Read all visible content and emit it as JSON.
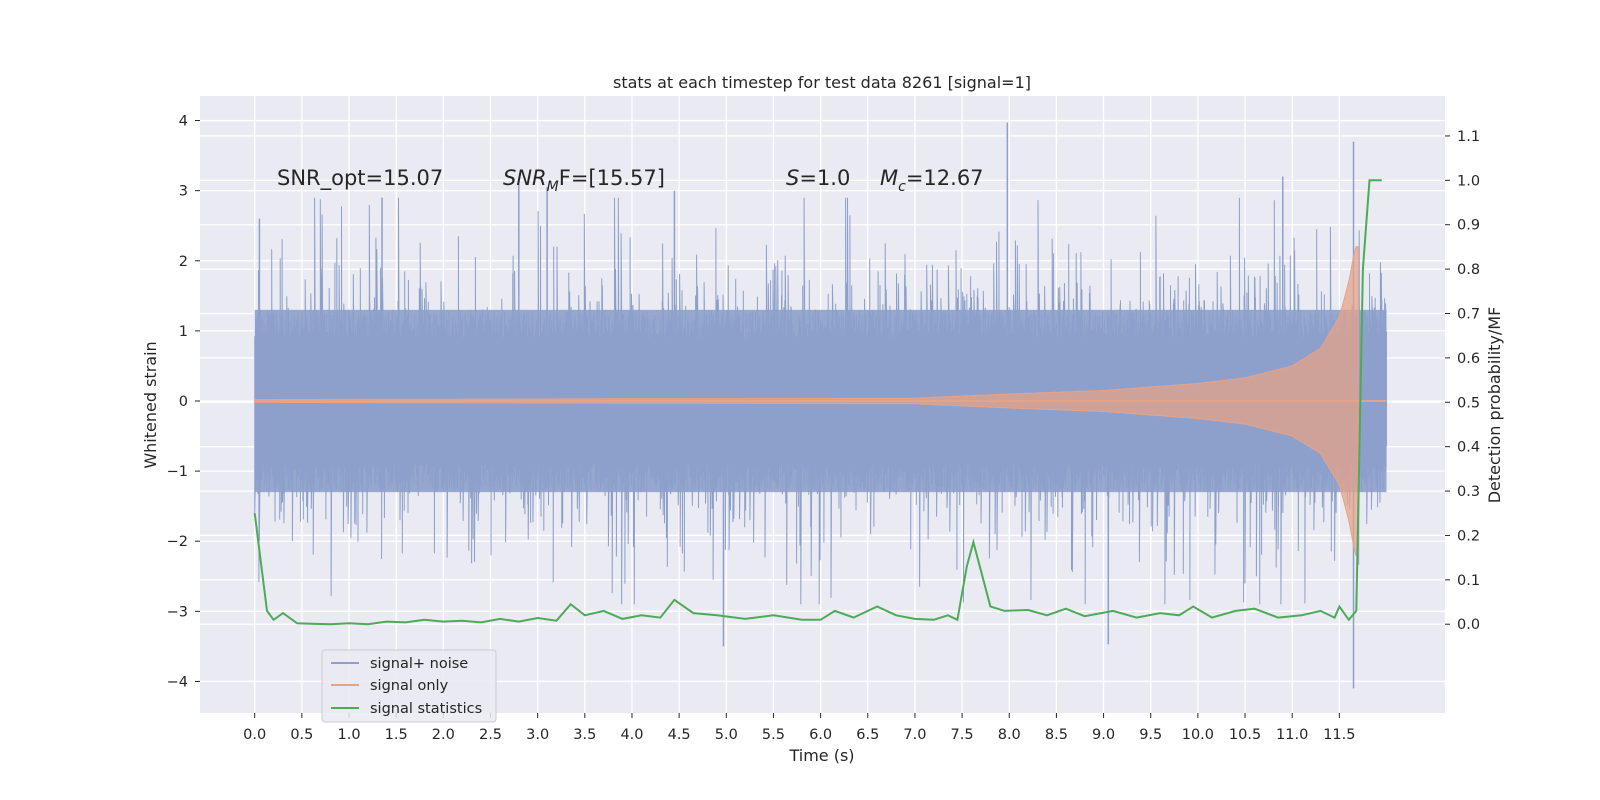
{
  "chart_data": {
    "type": "line",
    "title": "stats at each timestep for test data 8261 [signal=1]",
    "xlabel": "Time (s)",
    "ylabel_left": "Whitened strain",
    "ylabel_right": "Detection probability/MF",
    "xlim": [
      -0.58,
      12.62
    ],
    "ylim_left": [
      -4.45,
      4.35
    ],
    "ylim_right": [
      -0.2,
      1.19
    ],
    "x_ticks": [
      "0.0",
      "0.5",
      "1.0",
      "1.5",
      "2.0",
      "2.5",
      "3.0",
      "3.5",
      "4.0",
      "4.5",
      "5.0",
      "5.5",
      "6.0",
      "6.5",
      "7.0",
      "7.5",
      "8.0",
      "8.5",
      "9.0",
      "9.5",
      "10.0",
      "10.5",
      "11.0",
      "11.5"
    ],
    "y_ticks_left": [
      "4",
      "3",
      "2",
      "1",
      "0",
      "−1",
      "−2",
      "−3",
      "−4"
    ],
    "y_ticks_right": [
      "1.1",
      "1.0",
      "0.9",
      "0.8",
      "0.7",
      "0.6",
      "0.5",
      "0.4",
      "0.3",
      "0.2",
      "0.1",
      "0.0"
    ],
    "grid": true,
    "legend_position": "lower-left",
    "annotations": {
      "snr_opt": "SNR_opt=15.07",
      "snr_mf_main": "SNR",
      "snr_mf_sub": "M",
      "snr_mf_rest": "F=[15.57]",
      "s_label": "S",
      "s_value": "=1.0",
      "mc_label": "M",
      "mc_sub": "c",
      "mc_value": "=12.67"
    },
    "series": [
      {
        "name": "signal+ noise",
        "color": "#8da0cb",
        "axis": "left",
        "x_range": [
          0.0,
          12.0
        ],
        "typical_range": [
          -1.3,
          1.3
        ],
        "peaks": [
          {
            "x": 0.05,
            "y": 2.6
          },
          {
            "x": 1.35,
            "y": 2.9
          },
          {
            "x": 2.8,
            "y": 3.1
          },
          {
            "x": 3.1,
            "y": 3.05
          },
          {
            "x": 4.45,
            "y": 3.0
          },
          {
            "x": 4.97,
            "y": -3.5
          },
          {
            "x": 7.98,
            "y": 3.97
          },
          {
            "x": 9.05,
            "y": -3.47
          },
          {
            "x": 10.9,
            "y": 3.2
          },
          {
            "x": 11.65,
            "y": 3.7
          },
          {
            "x": 11.65,
            "y": -4.1
          }
        ]
      },
      {
        "name": "signal only",
        "color": "#e5a388",
        "axis": "left",
        "x_range": [
          0.0,
          11.7
        ],
        "envelope": [
          {
            "x": 0.0,
            "y": 0.02
          },
          {
            "x": 7.0,
            "y": 0.04
          },
          {
            "x": 8.0,
            "y": 0.1
          },
          {
            "x": 9.0,
            "y": 0.15
          },
          {
            "x": 10.0,
            "y": 0.25
          },
          {
            "x": 10.5,
            "y": 0.33
          },
          {
            "x": 11.0,
            "y": 0.5
          },
          {
            "x": 11.3,
            "y": 0.75
          },
          {
            "x": 11.5,
            "y": 1.2
          },
          {
            "x": 11.6,
            "y": 1.7
          },
          {
            "x": 11.67,
            "y": 2.2
          }
        ]
      },
      {
        "name": "signal statistics",
        "color": "#4daa57",
        "axis": "right",
        "points": [
          {
            "x": 0.0,
            "y": 0.25
          },
          {
            "x": 0.13,
            "y": 0.03
          },
          {
            "x": 0.2,
            "y": 0.01
          },
          {
            "x": 0.3,
            "y": 0.025
          },
          {
            "x": 0.45,
            "y": 0.002
          },
          {
            "x": 0.6,
            "y": 0.001
          },
          {
            "x": 0.8,
            "y": 0.0
          },
          {
            "x": 1.0,
            "y": 0.002
          },
          {
            "x": 1.2,
            "y": 0.0
          },
          {
            "x": 1.4,
            "y": 0.006
          },
          {
            "x": 1.6,
            "y": 0.004
          },
          {
            "x": 1.8,
            "y": 0.01
          },
          {
            "x": 2.0,
            "y": 0.006
          },
          {
            "x": 2.2,
            "y": 0.008
          },
          {
            "x": 2.4,
            "y": 0.004
          },
          {
            "x": 2.6,
            "y": 0.012
          },
          {
            "x": 2.8,
            "y": 0.006
          },
          {
            "x": 3.0,
            "y": 0.014
          },
          {
            "x": 3.2,
            "y": 0.008
          },
          {
            "x": 3.35,
            "y": 0.045
          },
          {
            "x": 3.5,
            "y": 0.02
          },
          {
            "x": 3.7,
            "y": 0.03
          },
          {
            "x": 3.9,
            "y": 0.012
          },
          {
            "x": 4.1,
            "y": 0.02
          },
          {
            "x": 4.3,
            "y": 0.015
          },
          {
            "x": 4.45,
            "y": 0.055
          },
          {
            "x": 4.65,
            "y": 0.025
          },
          {
            "x": 4.9,
            "y": 0.02
          },
          {
            "x": 5.2,
            "y": 0.012
          },
          {
            "x": 5.5,
            "y": 0.02
          },
          {
            "x": 5.8,
            "y": 0.01
          },
          {
            "x": 6.0,
            "y": 0.01
          },
          {
            "x": 6.15,
            "y": 0.03
          },
          {
            "x": 6.35,
            "y": 0.015
          },
          {
            "x": 6.6,
            "y": 0.04
          },
          {
            "x": 6.8,
            "y": 0.02
          },
          {
            "x": 7.0,
            "y": 0.012
          },
          {
            "x": 7.2,
            "y": 0.01
          },
          {
            "x": 7.35,
            "y": 0.02
          },
          {
            "x": 7.45,
            "y": 0.01
          },
          {
            "x": 7.55,
            "y": 0.13
          },
          {
            "x": 7.62,
            "y": 0.185
          },
          {
            "x": 7.7,
            "y": 0.12
          },
          {
            "x": 7.8,
            "y": 0.04
          },
          {
            "x": 7.95,
            "y": 0.03
          },
          {
            "x": 8.2,
            "y": 0.032
          },
          {
            "x": 8.4,
            "y": 0.02
          },
          {
            "x": 8.6,
            "y": 0.035
          },
          {
            "x": 8.8,
            "y": 0.018
          },
          {
            "x": 9.1,
            "y": 0.03
          },
          {
            "x": 9.35,
            "y": 0.015
          },
          {
            "x": 9.6,
            "y": 0.025
          },
          {
            "x": 9.8,
            "y": 0.02
          },
          {
            "x": 9.95,
            "y": 0.04
          },
          {
            "x": 10.15,
            "y": 0.015
          },
          {
            "x": 10.4,
            "y": 0.03
          },
          {
            "x": 10.6,
            "y": 0.035
          },
          {
            "x": 10.85,
            "y": 0.015
          },
          {
            "x": 11.1,
            "y": 0.02
          },
          {
            "x": 11.3,
            "y": 0.03
          },
          {
            "x": 11.45,
            "y": 0.015
          },
          {
            "x": 11.5,
            "y": 0.04
          },
          {
            "x": 11.6,
            "y": 0.01
          },
          {
            "x": 11.68,
            "y": 0.03
          },
          {
            "x": 11.75,
            "y": 0.8
          },
          {
            "x": 11.82,
            "y": 1.0
          },
          {
            "x": 11.9,
            "y": 1.0
          },
          {
            "x": 11.95,
            "y": 1.0
          }
        ]
      }
    ]
  }
}
